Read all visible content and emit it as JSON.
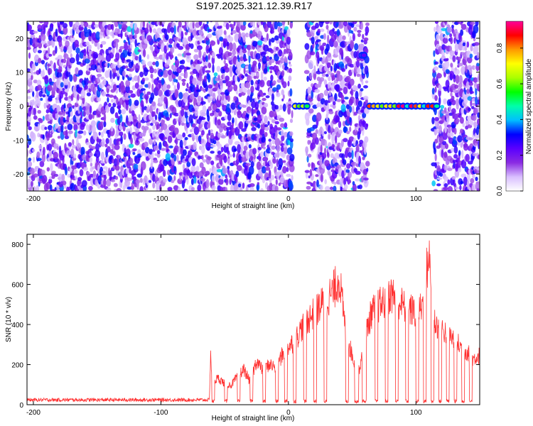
{
  "figure_title": "S197.2025.321.12.39.R17",
  "chart_data": [
    {
      "type": "heatmap",
      "xlabel": "Height of straight line (km)",
      "ylabel": "Frequency (Hz)",
      "xlim": [
        -205,
        150
      ],
      "ylim": [
        -25,
        25
      ],
      "xticks": [
        -200,
        -100,
        0,
        100
      ],
      "yticks": [
        -20,
        -10,
        0,
        10,
        20
      ],
      "colorbar": {
        "label": "Normalized spectral amplitude",
        "range": [
          0,
          0.95
        ],
        "ticks": [
          0.0,
          0.2,
          0.4,
          0.6,
          0.8
        ],
        "colors": [
          "#ffffff",
          "#d9bfff",
          "#8a2be2",
          "#5a00ff",
          "#0000ff",
          "#00bfff",
          "#00ffaa",
          "#00ff00",
          "#aaff00",
          "#ffff00",
          "#ff9900",
          "#ff0000",
          "#ff0099"
        ]
      },
      "blank_x_ranges": [
        [
          2,
          14
        ],
        [
          62,
          113
        ]
      ],
      "peak_features": [
        {
          "x_range": [
            4,
            16
          ],
          "frequency": 0,
          "max_amplitude": 0.85
        },
        {
          "x_range": [
            57,
            60
          ],
          "frequency": 15,
          "max_amplitude": 0.35
        },
        {
          "x_range": [
            62,
            118
          ],
          "frequency": 0,
          "max_amplitude": 0.95
        }
      ]
    },
    {
      "type": "line",
      "xlabel": "Height of straight line (km)",
      "ylabel": "SNR (10 * v/v)",
      "xlim": [
        -205,
        150
      ],
      "ylim": [
        0,
        850
      ],
      "xticks": [
        -200,
        -100,
        0,
        100
      ],
      "yticks": [
        0,
        200,
        400,
        600,
        800
      ],
      "series": [
        {
          "color": "#ff3030",
          "x": [
            -205,
            -190,
            -170,
            -150,
            -130,
            -110,
            -90,
            -70,
            -62,
            -61,
            -60,
            -55,
            -50,
            -45,
            -40,
            -35,
            -30,
            -25,
            -20,
            -15,
            -10,
            -5,
            0,
            5,
            10,
            15,
            20,
            25,
            30,
            35,
            40,
            45,
            50,
            55,
            60,
            65,
            70,
            75,
            80,
            85,
            90,
            95,
            100,
            105,
            110,
            115,
            120,
            125,
            130,
            135,
            140,
            145,
            150
          ],
          "y": [
            25,
            28,
            25,
            28,
            26,
            27,
            25,
            25,
            30,
            300,
            130,
            150,
            120,
            110,
            160,
            200,
            130,
            250,
            190,
            230,
            210,
            280,
            330,
            360,
            430,
            480,
            520,
            560,
            600,
            640,
            720,
            400,
            280,
            180,
            380,
            520,
            560,
            580,
            630,
            600,
            560,
            540,
            520,
            560,
            850,
            460,
            430,
            400,
            370,
            330,
            300,
            260,
            280
          ]
        }
      ],
      "dropout_x_ranges": [
        [
          -60,
          -58
        ],
        [
          -50,
          -48
        ],
        [
          -40,
          -38
        ],
        [
          -30,
          -28
        ],
        [
          -20,
          -18
        ],
        [
          -10,
          -8
        ],
        [
          -3,
          -1
        ],
        [
          4,
          6
        ],
        [
          12,
          14
        ],
        [
          20,
          22
        ],
        [
          28,
          30
        ],
        [
          45,
          47
        ],
        [
          52,
          55
        ],
        [
          58,
          61
        ],
        [
          68,
          70
        ],
        [
          76,
          78
        ],
        [
          84,
          86
        ],
        [
          92,
          94
        ],
        [
          100,
          102
        ],
        [
          106,
          108
        ],
        [
          112,
          114
        ],
        [
          118,
          120
        ],
        [
          124,
          126
        ],
        [
          130,
          132
        ],
        [
          136,
          138
        ],
        [
          142,
          144
        ]
      ]
    }
  ]
}
